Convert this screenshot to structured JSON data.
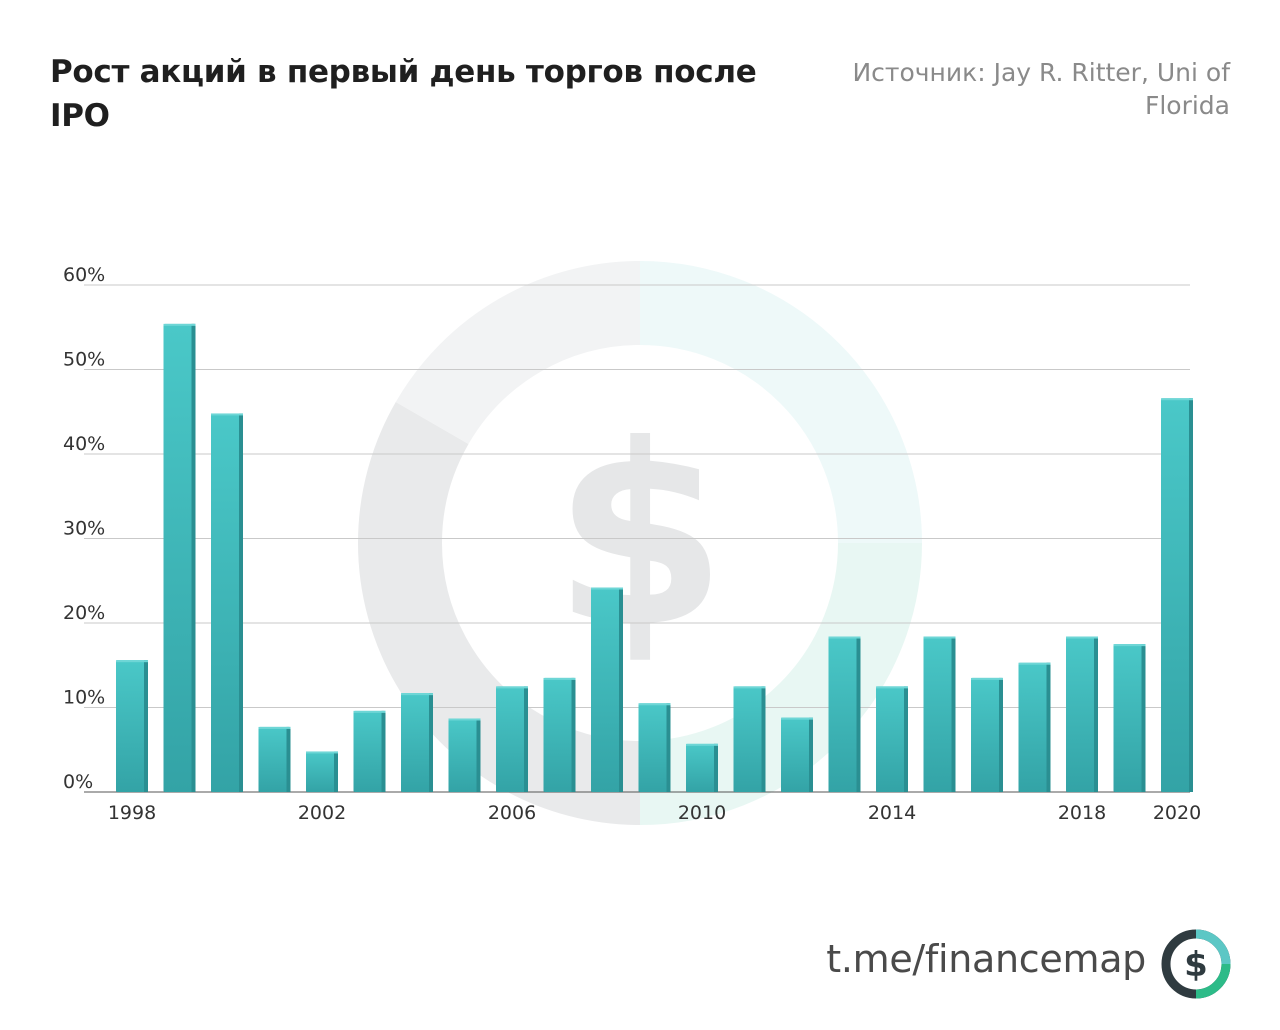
{
  "header": {
    "title": "Рост акций в первый день торгов после IPO",
    "source": "Источник: Jay R. Ritter, Uni of Florida"
  },
  "footer": {
    "link": "t.me/financemap",
    "logo_glyph": "$"
  },
  "colors": {
    "bar_top": "#4ac8c8",
    "bar_bottom": "#33a3a6",
    "bar_side": "#2a8f92",
    "grid": "#c9c9c9",
    "tick_text": "#333333",
    "watermark_gray": "#e9eaeb",
    "watermark_mint": "#e8f7f3",
    "logo_dark": "#2f3b40",
    "logo_teal": "#5cc7c5",
    "logo_green": "#2dbb88"
  },
  "chart_data": {
    "type": "bar",
    "x": [
      1998,
      1999,
      2000,
      2001,
      2002,
      2003,
      2004,
      2005,
      2006,
      2007,
      2008,
      2009,
      2010,
      2011,
      2012,
      2013,
      2014,
      2015,
      2016,
      2017,
      2018,
      2019,
      2020
    ],
    "values": [
      15.6,
      55.4,
      44.8,
      7.7,
      4.8,
      9.6,
      11.7,
      8.7,
      12.5,
      13.5,
      24.2,
      10.5,
      5.7,
      12.5,
      8.8,
      18.4,
      12.5,
      18.4,
      13.5,
      15.3,
      18.4,
      17.5,
      46.6
    ],
    "x_tick_labels": [
      "1998",
      "2002",
      "2006",
      "2010",
      "2014",
      "2018",
      "2020"
    ],
    "y_tick_labels": [
      "0%",
      "10%",
      "20%",
      "30%",
      "40%",
      "50%",
      "60%"
    ],
    "ylim": [
      0,
      60
    ],
    "grid": true,
    "legend": "none",
    "title": "Рост акций в первый день торгов после IPO",
    "xlabel": "",
    "ylabel": ""
  }
}
